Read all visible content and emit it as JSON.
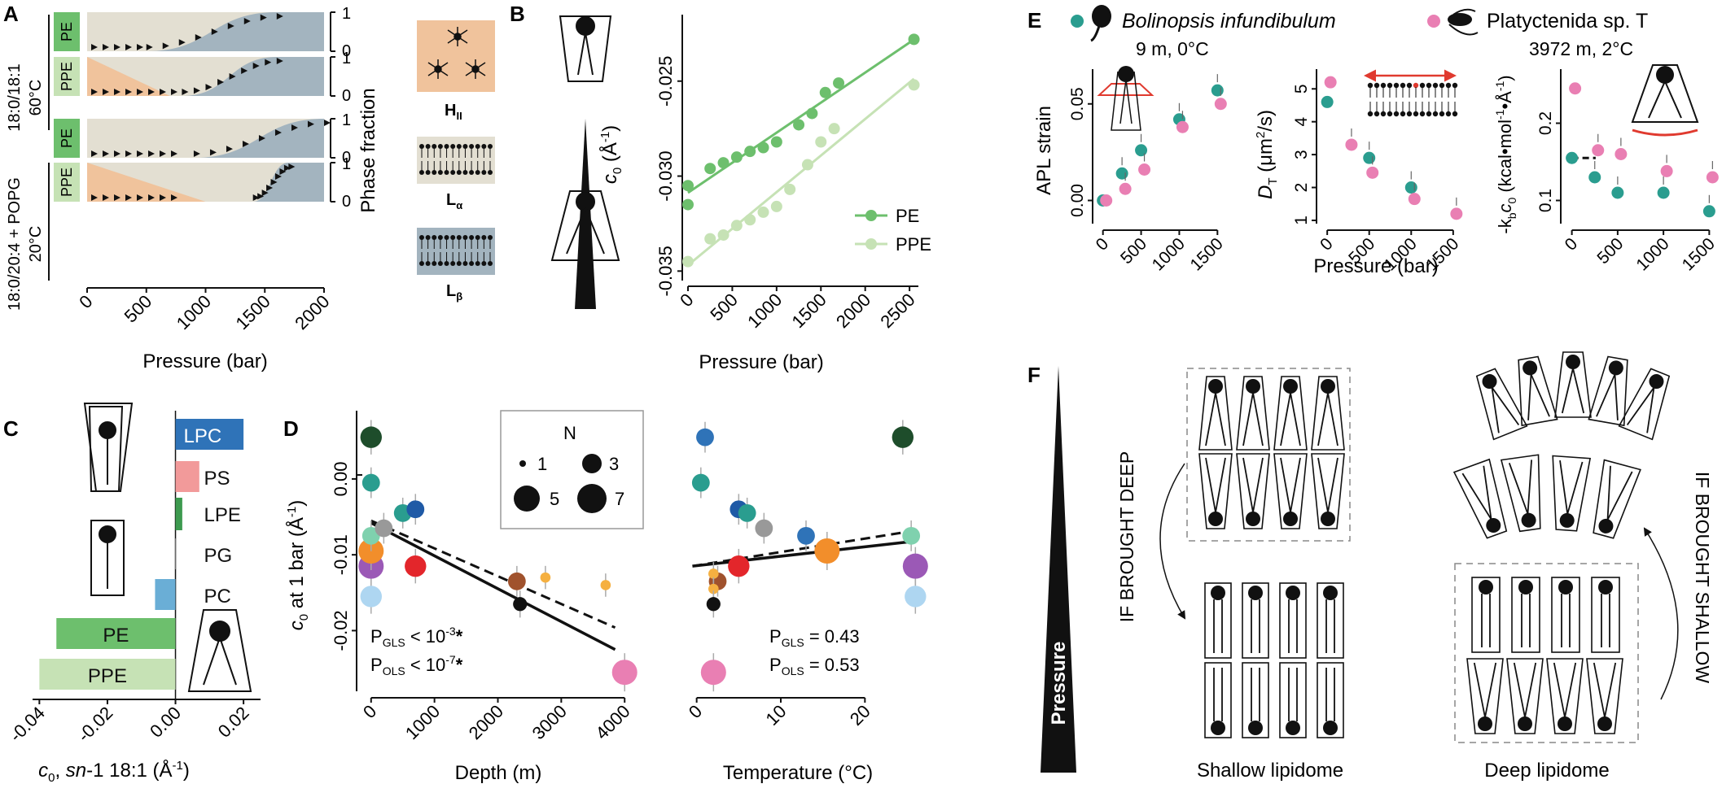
{
  "colors": {
    "hii": "#f0c39c",
    "la": "#e3dfd2",
    "lb": "#a3b4bf",
    "pe": "#6dbf6d",
    "ppe": "#c6e2b5",
    "teal": "#2a9d8f",
    "pink": "#e97fb3",
    "lpc": "#2f73b8",
    "ps": "#f29a9a",
    "lpe": "#3d9a4f",
    "pc": "#6aaed6",
    "red_arrow": "#e03a2f"
  },
  "panel_letters": {
    "a": "A",
    "b": "B",
    "c": "C",
    "d": "D",
    "e": "E",
    "f": "F"
  },
  "panel_a": {
    "group1_label": "18:0/18:1",
    "group1_temp": "60°C",
    "group2_label": "18:0/20:4 + POPG",
    "group2_temp": "20°C",
    "row_labels": [
      "PE",
      "PPE",
      "PE",
      "PPE"
    ],
    "ytick_top": "1",
    "ytick_bottom": "0",
    "ylabel": "Phase fraction",
    "xlabel": "Pressure (bar)",
    "xticks": [
      0,
      500,
      1000,
      1500,
      2000
    ],
    "phase_labels": [
      "H",
      "L",
      "L"
    ],
    "phase_subs": [
      "II",
      "α",
      "β"
    ],
    "chart_data": {
      "type": "area",
      "x_unit": "bar",
      "xlim": [
        0,
        2000
      ],
      "ylim": [
        0,
        1
      ],
      "rows": [
        {
          "lipid": "PE",
          "condition": "18:0/18:1, 60°C",
          "HII_to_La_end": 0,
          "La_to_Lb_start": 500,
          "La_to_Lb_end": 1600
        },
        {
          "lipid": "PPE",
          "condition": "18:0/18:1, 60°C",
          "HII_to_La_start": 0,
          "HII_to_La_end": 700,
          "La_to_Lb_start": 800,
          "La_to_Lb_end": 1600
        },
        {
          "lipid": "PE",
          "condition": "18:0/20:4 + POPG, 20°C",
          "La_to_Lb_start": 900,
          "La_to_Lb_end": 2000
        },
        {
          "lipid": "PPE",
          "condition": "18:0/20:4 + POPG, 20°C",
          "HII_to_La_start": 0,
          "HII_to_La_end": 1000,
          "La_to_Lb_start": 1400,
          "La_to_Lb_end": 1700
        }
      ]
    }
  },
  "panel_b": {
    "ylabel_main": "c",
    "ylabel_sub": "0",
    "ylabel_unit": " (Å",
    "ylabel_sup": "-1",
    "ylabel_close": ")",
    "xlabel": "Pressure (bar)",
    "legend": [
      "PE",
      "PPE"
    ],
    "chart_data": {
      "type": "scatter",
      "xlim": [
        0,
        2600
      ],
      "ylim": [
        -0.0355,
        -0.0215
      ],
      "xticks": [
        0,
        500,
        1000,
        1500,
        2000,
        2500
      ],
      "yticks": [
        -0.025,
        -0.03,
        -0.035
      ],
      "series": [
        {
          "name": "PE",
          "x": [
            0,
            0,
            250,
            400,
            550,
            700,
            850,
            1000,
            1250,
            1400,
            1550,
            1700,
            2550
          ],
          "y": [
            -0.0305,
            -0.0315,
            -0.0296,
            -0.0293,
            -0.029,
            -0.0287,
            -0.0285,
            -0.0282,
            -0.0273,
            -0.0267,
            -0.0256,
            -0.0251,
            -0.0228
          ]
        },
        {
          "name": "PPE",
          "x": [
            0,
            250,
            400,
            550,
            700,
            850,
            1000,
            1150,
            1350,
            1500,
            1650,
            2550
          ],
          "y": [
            -0.0345,
            -0.0333,
            -0.0331,
            -0.0326,
            -0.0323,
            -0.0319,
            -0.0316,
            -0.0307,
            -0.0294,
            -0.0282,
            -0.0275,
            -0.0252
          ]
        }
      ]
    }
  },
  "panel_c": {
    "xlabel_main": "c",
    "xlabel_sub": "0",
    "xlabel_rest": ", ",
    "xlabel_sn": "sn",
    "xlabel_tail": "-1 18:1 (Å",
    "xlabel_sup": "-1",
    "xlabel_close": ")",
    "chart_data": {
      "type": "bar",
      "orientation": "horizontal",
      "categories": [
        "LPC",
        "PS",
        "LPE",
        "PG",
        "PC",
        "PE",
        "PPE"
      ],
      "values": [
        0.02,
        0.007,
        0.002,
        0.0,
        -0.006,
        -0.035,
        -0.04
      ],
      "xlim": [
        -0.042,
        0.025
      ],
      "xticks": [
        -0.04,
        -0.02,
        0.0,
        0.02
      ]
    }
  },
  "panel_d": {
    "ylabel_main": "c",
    "ylabel_sub": "0",
    "ylabel_rest": " at 1 bar (Å",
    "ylabel_sup": "-1",
    "ylabel_close": ")",
    "left": {
      "xlabel": "Depth (m)",
      "p_gls_label": "P",
      "p_gls_sub": "GLS",
      "p_gls_value": " < 10",
      "p_gls_sup": "-3",
      "p_gls_star": "*",
      "p_ols_label": "P",
      "p_ols_sub": "OLS",
      "p_ols_value": " < 10",
      "p_ols_sup": "-7",
      "p_ols_star": "*"
    },
    "right": {
      "xlabel": "Temperature (°C)",
      "p_gls_label": "P",
      "p_gls_sub": "GLS",
      "p_gls_value": " = 0.43",
      "p_ols_label": "P",
      "p_ols_sub": "OLS",
      "p_ols_value": " = 0.53"
    },
    "legend": {
      "title": "N",
      "items": [
        "1",
        "3",
        "5",
        "7"
      ]
    },
    "chart_data": {
      "type": "scatter",
      "ylim": [
        -0.028,
        0.009
      ],
      "yticks": [
        0.0,
        -0.01,
        -0.02
      ],
      "depth": {
        "xlim": [
          -100,
          4100
        ],
        "xticks": [
          0,
          1000,
          2000,
          3000,
          4000
        ],
        "points": [
          {
            "x": 0,
            "y": 0.0055,
            "color": "#1e4d2b",
            "n": 4
          },
          {
            "x": 0,
            "y": -0.0005,
            "color": "#2a9d8f",
            "n": 3
          },
          {
            "x": 0,
            "y": -0.0115,
            "color": "#9b59b6",
            "n": 5
          },
          {
            "x": 0,
            "y": -0.0095,
            "color": "#f28e2b",
            "n": 5
          },
          {
            "x": 0,
            "y": -0.0155,
            "color": "#aed6f1",
            "n": 4
          },
          {
            "x": 0,
            "y": -0.0075,
            "color": "#7fd1ae",
            "n": 3
          },
          {
            "x": 200,
            "y": -0.0065,
            "color": "#999999",
            "n": 3
          },
          {
            "x": 500,
            "y": -0.0045,
            "color": "#2a9d8f",
            "n": 3
          },
          {
            "x": 700,
            "y": -0.004,
            "color": "#1f5aa6",
            "n": 3
          },
          {
            "x": 700,
            "y": -0.0115,
            "color": "#e3262b",
            "n": 4
          },
          {
            "x": 2300,
            "y": -0.0135,
            "color": "#a0522d",
            "n": 3
          },
          {
            "x": 2350,
            "y": -0.0165,
            "color": "#111111",
            "n": 2
          },
          {
            "x": 2750,
            "y": -0.013,
            "color": "#f5b041",
            "n": 1
          },
          {
            "x": 3700,
            "y": -0.014,
            "color": "#f5b041",
            "n": 1
          },
          {
            "x": 4000,
            "y": -0.0255,
            "color": "#e97fb3",
            "n": 5
          }
        ],
        "fit_gls": {
          "x": [
            0,
            3850
          ],
          "y": [
            -0.0058,
            -0.0225
          ]
        },
        "fit_ols": {
          "x": [
            0,
            3850
          ],
          "y": [
            -0.0055,
            -0.0196
          ]
        }
      },
      "temperature": {
        "xlim": [
          -2,
          28
        ],
        "xticks": [
          0,
          10,
          20
        ],
        "points": [
          {
            "x": 24.5,
            "y": 0.0055,
            "color": "#1e4d2b",
            "n": 4
          },
          {
            "x": 1,
            "y": 0.0055,
            "color": "#2f73b8",
            "n": 3
          },
          {
            "x": 0.5,
            "y": -0.0005,
            "color": "#2a9d8f",
            "n": 3
          },
          {
            "x": 5,
            "y": -0.004,
            "color": "#1f5aa6",
            "n": 3
          },
          {
            "x": 6,
            "y": -0.0045,
            "color": "#2a9d8f",
            "n": 3
          },
          {
            "x": 8,
            "y": -0.0065,
            "color": "#999999",
            "n": 3
          },
          {
            "x": 13,
            "y": -0.0075,
            "color": "#2f73b8",
            "n": 3
          },
          {
            "x": 15.5,
            "y": -0.0095,
            "color": "#f28e2b",
            "n": 5
          },
          {
            "x": 25.5,
            "y": -0.0075,
            "color": "#7fd1ae",
            "n": 3
          },
          {
            "x": 26,
            "y": -0.0115,
            "color": "#9b59b6",
            "n": 5
          },
          {
            "x": 26,
            "y": -0.0155,
            "color": "#aed6f1",
            "n": 4
          },
          {
            "x": 5,
            "y": -0.0115,
            "color": "#e3262b",
            "n": 4
          },
          {
            "x": 2.5,
            "y": -0.0135,
            "color": "#a0522d",
            "n": 3
          },
          {
            "x": 2,
            "y": -0.0125,
            "color": "#f5b041",
            "n": 1
          },
          {
            "x": 2,
            "y": -0.0145,
            "color": "#f5b041",
            "n": 1
          },
          {
            "x": 2,
            "y": -0.0165,
            "color": "#111111",
            "n": 2
          },
          {
            "x": 2,
            "y": -0.0255,
            "color": "#e97fb3",
            "n": 5
          }
        ],
        "fit_gls": {
          "x": [
            -0.5,
            26
          ],
          "y": [
            -0.0115,
            -0.0082
          ]
        },
        "fit_ols": {
          "x": [
            -0.5,
            26
          ],
          "y": [
            -0.0115,
            -0.0068
          ]
        }
      }
    }
  },
  "panel_e": {
    "species1": "Bolinopsis infundibulum",
    "species1_env": "9 m, 0°C",
    "species2": "Platyctenida sp. T",
    "species2_env": "3972 m, 2°C",
    "xlabel": "Pressure (bar)",
    "p1_ylabel": "APL strain",
    "p2_ylabel_main": "D",
    "p2_ylabel_sub": "T",
    "p2_ylabel_rest": " (μm",
    "p2_ylabel_sup": "2",
    "p2_ylabel_close": "/s)",
    "p3_ylabel_pre": "-k",
    "p3_ylabel_sub1": "b",
    "p3_ylabel_mid": "c",
    "p3_ylabel_sub2": "0",
    "p3_ylabel_rest": " (kcal•mol",
    "p3_ylabel_sup1": "-1",
    "p3_ylabel_dot": "•Å",
    "p3_ylabel_sup2": "-1",
    "p3_ylabel_close": ")",
    "chart_data": [
      {
        "type": "scatter",
        "ylabel": "APL strain",
        "xlim": [
          -50,
          1550
        ],
        "ylim": [
          -0.012,
          0.068
        ],
        "xticks": [
          0,
          500,
          1000,
          1500
        ],
        "yticks": [
          0.0,
          0.05
        ],
        "series": [
          {
            "name": "Bolinopsis infundibulum",
            "x": [
              0,
              250,
              500,
              1000,
              1500
            ],
            "y": [
              0.0,
              0.014,
              0.026,
              0.042,
              0.057
            ]
          },
          {
            "name": "Platyctenida sp. T",
            "x": [
              0,
              250,
              500,
              1000,
              1500
            ],
            "y": [
              0.0,
              0.006,
              0.016,
              0.038,
              0.05
            ]
          }
        ]
      },
      {
        "type": "scatter",
        "xlim": [
          -50,
          1550
        ],
        "ylim": [
          0.9,
          5.6
        ],
        "xticks": [
          0,
          500,
          1000,
          1500
        ],
        "yticks": [
          1,
          2,
          3,
          4,
          5
        ],
        "series": [
          {
            "name": "Bolinopsis infundibulum",
            "x": [
              0,
              500,
              1000
            ],
            "y": [
              4.6,
              2.9,
              2.0
            ]
          },
          {
            "name": "Platyctenida sp. T",
            "x": [
              0,
              250,
              500,
              1000,
              1500
            ],
            "y": [
              5.2,
              3.3,
              2.45,
              1.65,
              1.2
            ]
          }
        ]
      },
      {
        "type": "scatter",
        "xlim": [
          -50,
          1550
        ],
        "ylim": [
          0.07,
          0.27
        ],
        "xticks": [
          0,
          500,
          1000,
          1500
        ],
        "yticks": [
          0.1,
          0.2
        ],
        "series": [
          {
            "name": "Bolinopsis infundibulum",
            "x": [
              0,
              250,
              500,
              1000,
              1500
            ],
            "y": [
              0.155,
              0.13,
              0.11,
              0.11,
              0.086
            ]
          },
          {
            "name": "Platyctenida sp. T",
            "x": [
              0,
              250,
              500,
              1000,
              1500
            ],
            "y": [
              0.245,
              0.165,
              0.16,
              0.138,
              0.13
            ]
          }
        ]
      }
    ]
  },
  "panel_f": {
    "pressure_label": "Pressure",
    "if_deep": "IF BROUGHT DEEP",
    "if_shallow": "IF BROUGHT SHALLOW",
    "shallow_label": "Shallow lipidome",
    "deep_label": "Deep lipidome"
  }
}
